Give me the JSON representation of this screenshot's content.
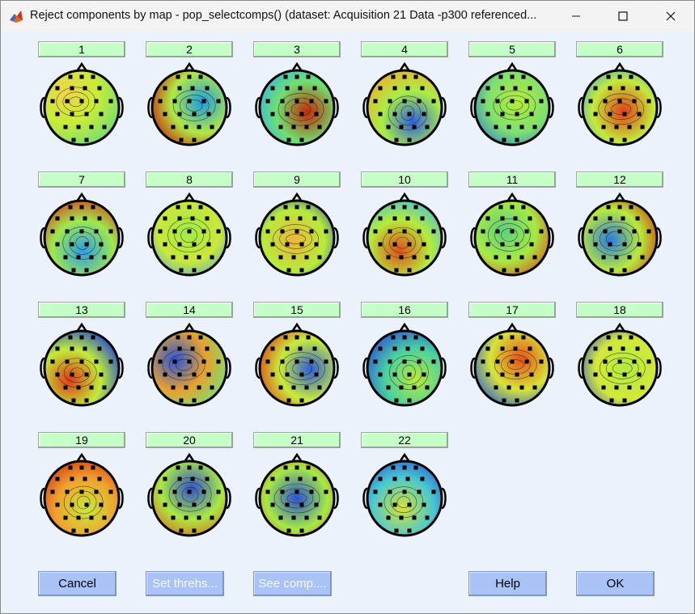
{
  "window": {
    "title": "Reject components by map - pop_selectcomps() (dataset: Acquisition 21 Data -p300 referenced...",
    "minimize_icon": "minimize-icon",
    "maximize_icon": "maximize-icon",
    "close_icon": "close-icon"
  },
  "components": [
    {
      "label": "1"
    },
    {
      "label": "2"
    },
    {
      "label": "3"
    },
    {
      "label": "4"
    },
    {
      "label": "5"
    },
    {
      "label": "6"
    },
    {
      "label": "7"
    },
    {
      "label": "8"
    },
    {
      "label": "9"
    },
    {
      "label": "10"
    },
    {
      "label": "11"
    },
    {
      "label": "12"
    },
    {
      "label": "13"
    },
    {
      "label": "14"
    },
    {
      "label": "15"
    },
    {
      "label": "16"
    },
    {
      "label": "17"
    },
    {
      "label": "18"
    },
    {
      "label": "19"
    },
    {
      "label": "20"
    },
    {
      "label": "21"
    },
    {
      "label": "22"
    }
  ],
  "buttons": {
    "cancel": "Cancel",
    "set_threshold": "Set threhs...",
    "see_comp": "See comp....",
    "help": "Help",
    "ok": "OK"
  },
  "colors": {
    "component_button": "#c5fec7",
    "action_button": "#a9c3f6",
    "background": "#ecf2fb"
  }
}
